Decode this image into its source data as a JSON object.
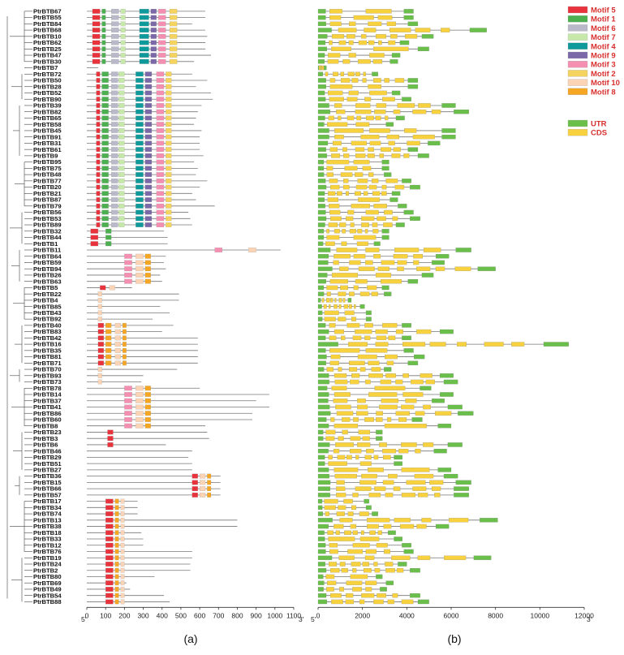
{
  "panels": {
    "a": {
      "label": "(a)",
      "end5": "5'",
      "end3": "3'"
    },
    "b": {
      "label": "(b)",
      "end5": "5'",
      "end3": "3'"
    }
  },
  "genes": [
    "PtrBTB67",
    "PtrBTB55",
    "PtrBTB84",
    "PtrBTB68",
    "PtrBTB10",
    "PtrBTB62",
    "PtrBTB25",
    "PtrBTB47",
    "PtrBTB30",
    "PtrBTB7",
    "PtrBTB72",
    "PtrBTB50",
    "PtrBTB28",
    "PtrBTB52",
    "PtrBTB90",
    "PtrBTB39",
    "PtrBTB82",
    "PtrBTB65",
    "PtrBTB58",
    "PtrBTB45",
    "PtrBTB91",
    "PtrBTB31",
    "PtrBTB61",
    "PtrBTB9",
    "PtrBTB95",
    "PtrBTB75",
    "PtrBTB48",
    "PtrBTB77",
    "PtrBTB20",
    "PtrBTB21",
    "PtrBTB87",
    "PtrBTB79",
    "PtrBTB56",
    "PtrBTB53",
    "PtrBTB89",
    "PtrBTB32",
    "PtrBTB44",
    "PtrBTB1",
    "PtrBTB11",
    "PtrBTB64",
    "PtrBTB59",
    "PtrBTB94",
    "PtrBTB26",
    "PtrBTB63",
    "PtrBTB5",
    "PtrBTB22",
    "PtrBTB4",
    "PtrBTB85",
    "PtrBTB43",
    "PtrBTB92",
    "PtrBTB40",
    "PtrBTB83",
    "PtrBTB42",
    "PtrBTB16",
    "PtrBTB35",
    "PtrBTB81",
    "PtrBTB71",
    "PtrBTB70",
    "PtrBTB93",
    "PtrBTB73",
    "PtrBTB78",
    "PtrBTB14",
    "PtrBTB37",
    "PtrBTB41",
    "PtrBTB86",
    "PtrBTB60",
    "PtrBTB8",
    "PtrBTB23",
    "PtrBTB3",
    "PtrBTB6",
    "PtrBTB46",
    "PtrBTB29",
    "PtrBTB51",
    "PtrBTB27",
    "PtrBTB36",
    "PtrBTB15",
    "PtrBTB66",
    "PtrBTB57",
    "PtrBTB17",
    "PtrBTB34",
    "PtrBTB74",
    "PtrBTB13",
    "PtrBTB38",
    "PtrBTB18",
    "PtrBTB33",
    "PtrBTB12",
    "PtrBTB76",
    "PtrBTB19",
    "PtrBTB24",
    "PtrBTB2",
    "PtrBTB80",
    "PtrBTB69",
    "PtrBTB49",
    "PtrBTB54",
    "PtrBTB88"
  ],
  "motif_legend": [
    {
      "name": "Motif 5",
      "color": "#e8323c"
    },
    {
      "name": "Motif 1",
      "color": "#4caf50"
    },
    {
      "name": "Motif 6",
      "color": "#b9b9c9"
    },
    {
      "name": "Motif 7",
      "color": "#c6e8a8"
    },
    {
      "name": "Motif 4",
      "color": "#0e9a9a"
    },
    {
      "name": "Motif 9",
      "color": "#7b68a8"
    },
    {
      "name": "Motif 3",
      "color": "#f48fb1"
    },
    {
      "name": "Motif 2",
      "color": "#f4d35e"
    },
    {
      "name": "Motif 10",
      "color": "#fbd3b5"
    },
    {
      "name": "Motif 8",
      "color": "#f5a623"
    }
  ],
  "structure_legend": [
    {
      "name": "UTR",
      "color": "#6abf4b"
    },
    {
      "name": "CDS",
      "color": "#f7d23e"
    }
  ],
  "chart_data": [
    {
      "type": "bar",
      "panel": "a",
      "description_note": "",
      "x_ticks": [
        0,
        100,
        200,
        300,
        400,
        500,
        600,
        700,
        800,
        900,
        1000,
        1100
      ],
      "xlim": [
        0,
        1100
      ],
      "protein_lengths": [
        630,
        630,
        560,
        630,
        640,
        630,
        630,
        660,
        570,
        60,
        560,
        640,
        580,
        660,
        670,
        610,
        590,
        580,
        570,
        610,
        600,
        600,
        600,
        620,
        570,
        590,
        580,
        640,
        600,
        560,
        580,
        680,
        540,
        550,
        560,
        410,
        430,
        430,
        1030,
        420,
        410,
        420,
        390,
        400,
        240,
        490,
        490,
        390,
        440,
        350,
        460,
        400,
        590,
        590,
        590,
        590,
        590,
        480,
        300,
        290,
        600,
        970,
        900,
        970,
        880,
        880,
        630,
        640,
        650,
        420,
        560,
        540,
        560,
        560,
        710,
        710,
        710,
        710,
        270,
        270,
        270,
        800,
        800,
        290,
        300,
        300,
        560,
        560,
        550,
        550,
        360,
        210,
        230,
        410,
        440
      ],
      "motif_groups": [
        {
          "genes": [
            0,
            1,
            2,
            3,
            4,
            5,
            6,
            7,
            8
          ],
          "motifs": [
            [
              5,
              30,
              70
            ],
            [
              1,
              80,
              100
            ],
            [
              6,
              130,
              170
            ],
            [
              7,
              180,
              205
            ],
            [
              4,
              280,
              330
            ],
            [
              9,
              340,
              370
            ],
            [
              3,
              380,
              420
            ],
            [
              2,
              440,
              480
            ]
          ]
        },
        {
          "genes": [
            10,
            11,
            12,
            13,
            14,
            15,
            16,
            17,
            18,
            19,
            20,
            21,
            22,
            23,
            24,
            25,
            26,
            27,
            28,
            29,
            30,
            31,
            32,
            33,
            34
          ],
          "motifs": [
            [
              5,
              50,
              70
            ],
            [
              1,
              80,
              115
            ],
            [
              6,
              130,
              165
            ],
            [
              7,
              170,
              200
            ],
            [
              4,
              260,
              300
            ],
            [
              9,
              310,
              345
            ],
            [
              3,
              370,
              410
            ],
            [
              2,
              420,
              450
            ]
          ]
        },
        {
          "genes": [
            35,
            36,
            37
          ],
          "motifs": [
            [
              5,
              20,
              60
            ],
            [
              1,
              100,
              130
            ]
          ]
        },
        {
          "genes": [
            38
          ],
          "motifs": [
            [
              3,
              680,
              720
            ],
            [
              10,
              860,
              900
            ]
          ]
        },
        {
          "genes": [
            39,
            40,
            41,
            42,
            43
          ],
          "motifs": [
            [
              3,
              200,
              240
            ],
            [
              10,
              260,
              300
            ],
            [
              8,
              310,
              340
            ]
          ]
        },
        {
          "genes": [
            44
          ],
          "motifs": [
            [
              5,
              70,
              100
            ],
            [
              10,
              120,
              150
            ]
          ]
        },
        {
          "genes": [
            45,
            46,
            47,
            48,
            49
          ],
          "motifs": [
            [
              10,
              60,
              80
            ]
          ]
        },
        {
          "genes": [
            50,
            51,
            52,
            53,
            54,
            55,
            56
          ],
          "motifs": [
            [
              5,
              60,
              90
            ],
            [
              8,
              100,
              130
            ],
            [
              10,
              150,
              180
            ],
            [
              8,
              190,
              210
            ]
          ]
        },
        {
          "genes": [
            57,
            58,
            59
          ],
          "motifs": [
            [
              10,
              60,
              80
            ]
          ]
        },
        {
          "genes": [
            60,
            61,
            62,
            63,
            64,
            65,
            66
          ],
          "motifs": [
            [
              3,
              200,
              240
            ],
            [
              10,
              260,
              300
            ],
            [
              8,
              310,
              340
            ]
          ]
        },
        {
          "genes": [
            67,
            68,
            69
          ],
          "motifs": [
            [
              5,
              110,
              140
            ]
          ]
        },
        {
          "genes": [
            74,
            75,
            76,
            77
          ],
          "motifs": [
            [
              5,
              560,
              590
            ],
            [
              10,
              600,
              630
            ],
            [
              8,
              640,
              660
            ]
          ]
        },
        {
          "genes": [
            78,
            79,
            80,
            81,
            82,
            83,
            84,
            85,
            86,
            87,
            88,
            89,
            90,
            91,
            92,
            93,
            94
          ],
          "motifs": [
            [
              5,
              100,
              140
            ],
            [
              8,
              150,
              170
            ],
            [
              10,
              180,
              200
            ]
          ]
        }
      ]
    },
    {
      "type": "bar",
      "panel": "b",
      "x_ticks": [
        0,
        2000,
        4000,
        6000,
        8000,
        10000,
        12000
      ],
      "xlim": [
        0,
        12000
      ],
      "gene_lengths": [
        4300,
        4300,
        4500,
        7600,
        5200,
        4100,
        5000,
        3700,
        3600,
        300,
        2700,
        4500,
        4500,
        3700,
        4200,
        6200,
        6800,
        3900,
        3400,
        6200,
        6200,
        5500,
        4500,
        5000,
        3200,
        3200,
        3300,
        4200,
        4600,
        3700,
        3600,
        4000,
        4300,
        4600,
        3900,
        3200,
        3200,
        2800,
        6900,
        5900,
        5700,
        8000,
        5200,
        4500,
        3200,
        3300,
        1500,
        2100,
        2400,
        2400,
        4200,
        6100,
        4200,
        11300,
        4300,
        4800,
        4500,
        3300,
        6100,
        6300,
        5100,
        6100,
        5700,
        6500,
        7000,
        4700,
        6000,
        2900,
        2900,
        6500,
        5800,
        3800,
        3800,
        6000,
        6300,
        6900,
        6800,
        6800,
        2300,
        2400,
        2700,
        8100,
        5900,
        3500,
        3800,
        4200,
        4300,
        7800,
        4000,
        4600,
        2900,
        3400,
        3100,
        4600,
        5000
      ],
      "structure_note": ""
    }
  ]
}
